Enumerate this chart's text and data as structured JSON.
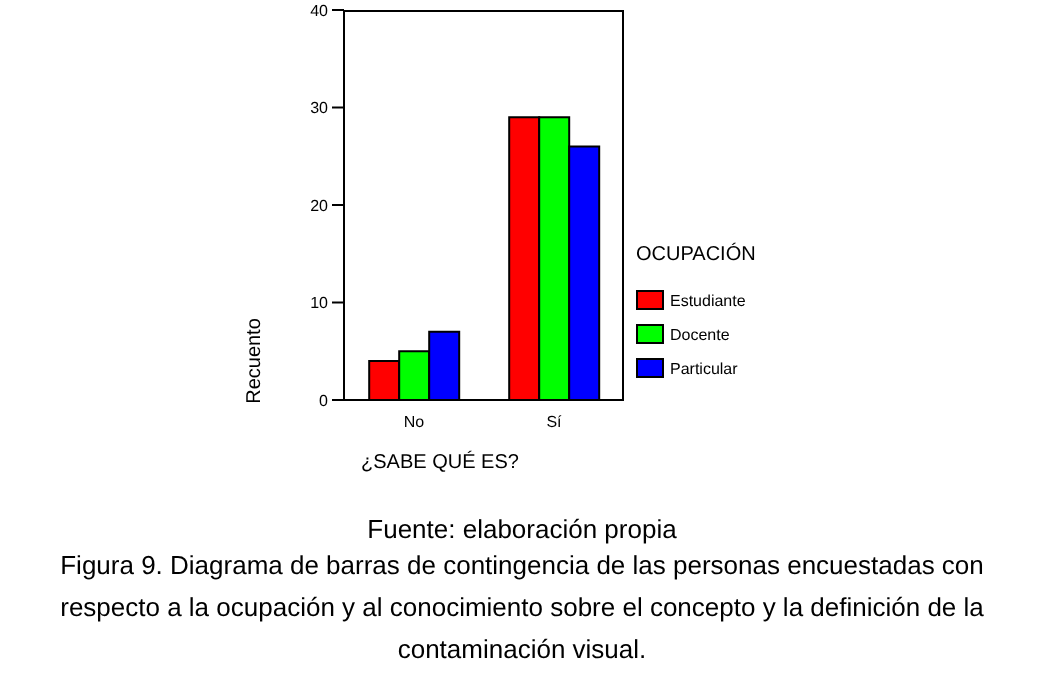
{
  "chart_data": {
    "type": "bar",
    "xlabel": "¿SABE QUÉ ES?",
    "ylabel": "Recuento",
    "legend_title": "OCUPACIÓN",
    "categories": [
      "No",
      "Sí"
    ],
    "series": [
      {
        "name": "Estudiante",
        "color": "#ff0000",
        "values": [
          4,
          29
        ]
      },
      {
        "name": "Docente",
        "color": "#00ff00",
        "values": [
          5,
          29
        ]
      },
      {
        "name": "Particular",
        "color": "#0000ff",
        "values": [
          7,
          26
        ]
      }
    ],
    "ylim": [
      0,
      40
    ],
    "yticks": [
      0,
      10,
      20,
      30,
      40
    ],
    "grid": false,
    "legend": "right",
    "annotations": [
      "Fuente: elaboración propia",
      "Figura 9. Diagrama de barras de contingencia de las personas encuestadas con respecto a la ocupación y al conocimiento sobre el concepto y la definición de la contaminación visual."
    ]
  }
}
